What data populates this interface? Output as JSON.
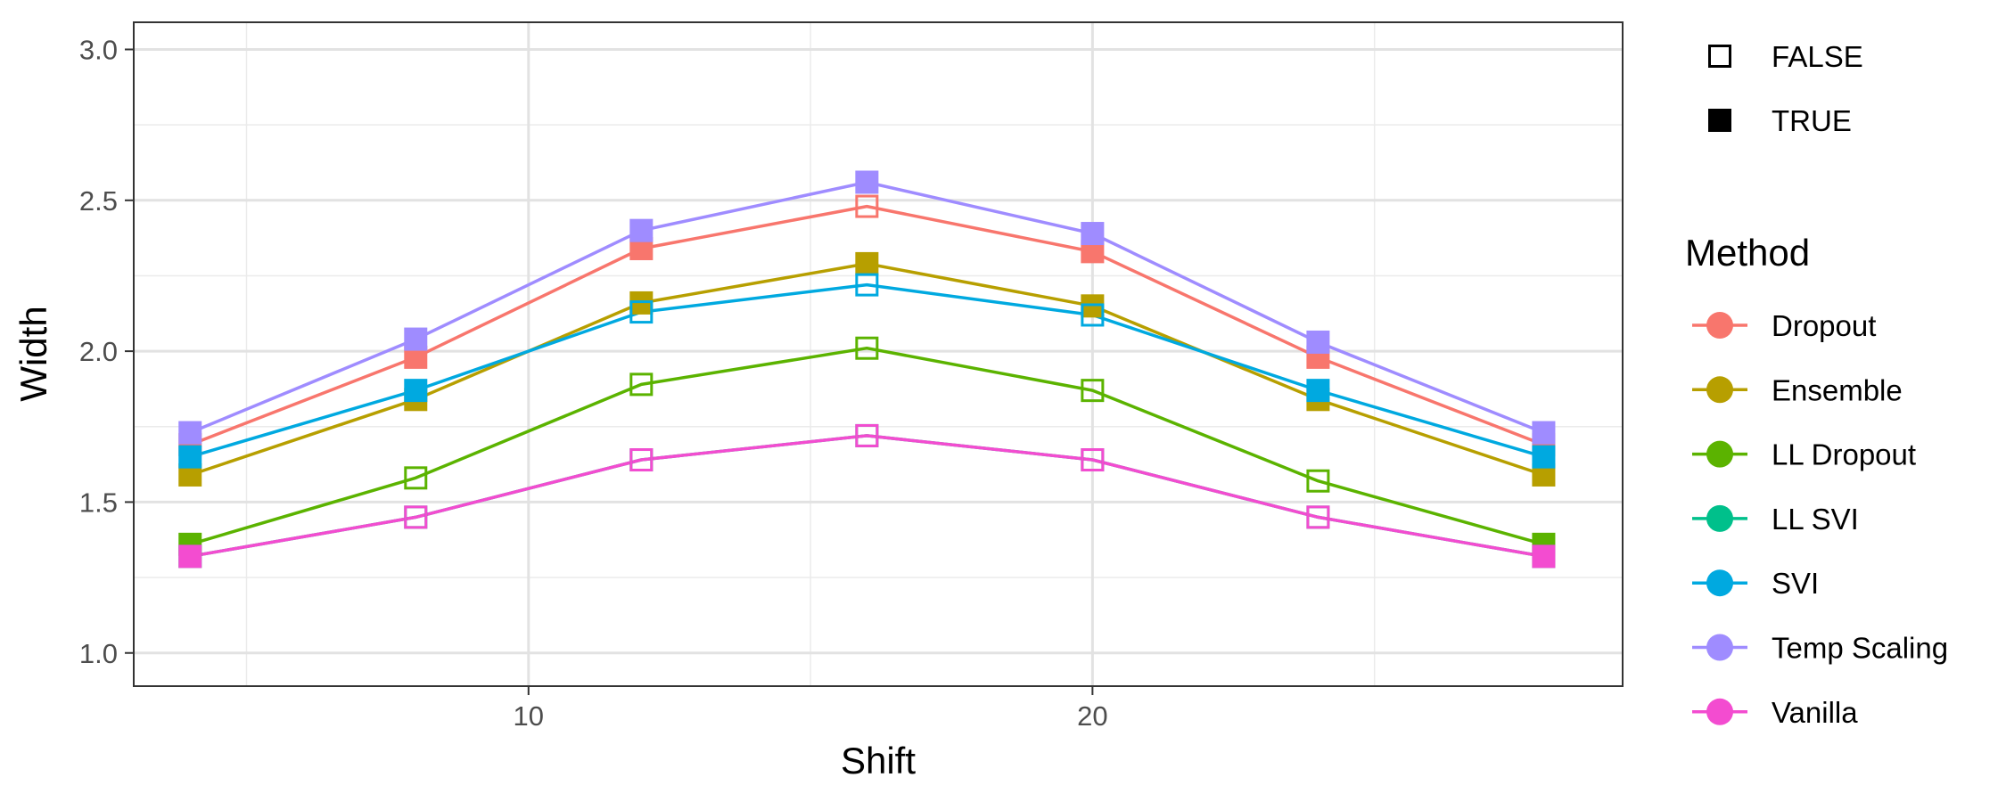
{
  "chart_data": {
    "type": "line",
    "title": "",
    "xlabel": "Shift",
    "ylabel": "Width",
    "xlim": [
      3,
      29.4
    ],
    "ylim": [
      0.89,
      3.09
    ],
    "x_ticks": [
      10,
      20
    ],
    "x_tick_labels": [
      "10",
      "20"
    ],
    "y_ticks": [
      1.0,
      1.5,
      2.0,
      2.5,
      3.0
    ],
    "y_tick_labels": [
      "1.0",
      "1.5",
      "2.0",
      "2.5",
      "3.0"
    ],
    "grid": true,
    "legend_position": "right",
    "x": [
      4,
      8,
      12,
      16,
      20,
      24,
      28
    ],
    "shape_legend": {
      "title": "",
      "entries": [
        {
          "label": "FALSE",
          "filled": false
        },
        {
          "label": "TRUE",
          "filled": true
        }
      ]
    },
    "marker_filled": [
      true,
      true,
      true,
      false,
      false,
      true,
      true
    ],
    "series_legend_title": "Method",
    "series": [
      {
        "name": "Dropout",
        "color": "#F8766D",
        "values": [
          1.69,
          1.98,
          2.34,
          2.48,
          2.33,
          1.98,
          1.69
        ],
        "filled": [
          true,
          true,
          true,
          false,
          true,
          true,
          true
        ]
      },
      {
        "name": "Ensemble",
        "color": "#B79F00",
        "values": [
          1.59,
          1.84,
          2.16,
          2.29,
          2.15,
          1.84,
          1.59
        ],
        "filled": [
          true,
          true,
          true,
          true,
          true,
          true,
          true
        ]
      },
      {
        "name": "LL Dropout",
        "color": "#5BB300",
        "values": [
          1.36,
          1.58,
          1.89,
          2.01,
          1.87,
          1.57,
          1.36
        ],
        "filled": [
          true,
          false,
          false,
          false,
          false,
          false,
          true
        ]
      },
      {
        "name": "LL SVI",
        "color": "#00C08B",
        "values": [
          1.32,
          1.45,
          1.64,
          1.72,
          1.64,
          1.45,
          1.32
        ],
        "filled": [
          true,
          false,
          false,
          false,
          false,
          false,
          true
        ]
      },
      {
        "name": "SVI",
        "color": "#00A9E0",
        "values": [
          1.65,
          1.87,
          2.13,
          2.22,
          2.12,
          1.87,
          1.65
        ],
        "filled": [
          true,
          true,
          false,
          false,
          false,
          true,
          true
        ]
      },
      {
        "name": "Temp Scaling",
        "color": "#9F8CFF",
        "values": [
          1.73,
          2.04,
          2.4,
          2.56,
          2.39,
          2.03,
          1.73
        ],
        "filled": [
          true,
          true,
          true,
          true,
          true,
          true,
          true
        ]
      },
      {
        "name": "Vanilla",
        "color": "#F34CD0",
        "values": [
          1.32,
          1.45,
          1.64,
          1.72,
          1.64,
          1.45,
          1.32
        ],
        "filled": [
          true,
          false,
          false,
          false,
          false,
          false,
          true
        ]
      }
    ]
  }
}
